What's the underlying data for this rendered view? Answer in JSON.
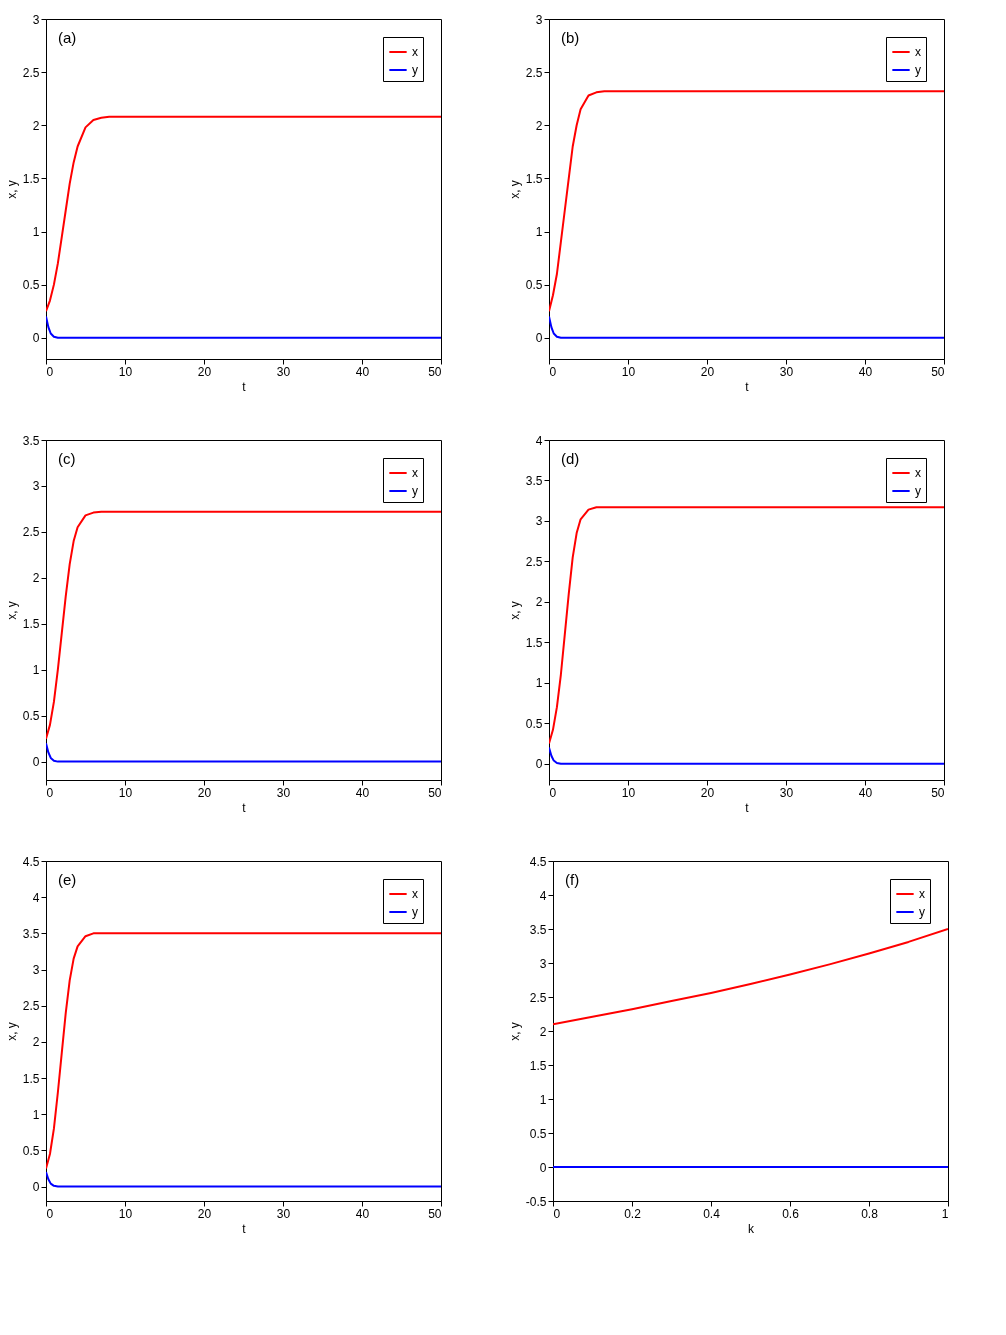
{
  "chart_data": [
    {
      "type": "line",
      "annotations": [
        "(a)"
      ],
      "xlabel": "t",
      "ylabel": "x, y",
      "xlim": [
        0,
        50
      ],
      "xticks": [
        0,
        10,
        20,
        30,
        40,
        50
      ],
      "ylim": [
        -0.2,
        3
      ],
      "yticks": [
        0,
        0.5,
        1,
        1.5,
        2,
        2.5,
        3
      ],
      "legend": "top right",
      "grid": false,
      "series": [
        {
          "name": "x",
          "color": "#ff0000",
          "x": [
            0,
            0.5,
            1,
            1.5,
            2,
            2.5,
            3,
            3.5,
            4,
            5,
            6,
            7,
            8,
            10,
            20,
            30,
            40,
            50
          ],
          "values": [
            0.25,
            0.35,
            0.5,
            0.7,
            0.95,
            1.2,
            1.45,
            1.65,
            1.8,
            1.98,
            2.05,
            2.07,
            2.08,
            2.08,
            2.08,
            2.08,
            2.08,
            2.08
          ]
        },
        {
          "name": "y",
          "color": "#0000ff",
          "x": [
            0,
            0.3,
            0.6,
            1,
            1.5,
            2,
            50
          ],
          "values": [
            0.2,
            0.1,
            0.04,
            0.01,
            0,
            0,
            0
          ]
        }
      ]
    },
    {
      "type": "line",
      "annotations": [
        "(b)"
      ],
      "xlabel": "t",
      "ylabel": "x, y",
      "xlim": [
        0,
        50
      ],
      "xticks": [
        0,
        10,
        20,
        30,
        40,
        50
      ],
      "ylim": [
        -0.2,
        3
      ],
      "yticks": [
        0,
        0.5,
        1,
        1.5,
        2,
        2.5,
        3
      ],
      "legend": "top right",
      "grid": false,
      "series": [
        {
          "name": "x",
          "color": "#ff0000",
          "x": [
            0,
            0.5,
            1,
            1.5,
            2,
            2.5,
            3,
            3.5,
            4,
            5,
            6,
            7,
            8,
            10,
            20,
            30,
            40,
            50
          ],
          "values": [
            0.25,
            0.4,
            0.6,
            0.9,
            1.2,
            1.5,
            1.8,
            2.0,
            2.15,
            2.28,
            2.31,
            2.32,
            2.32,
            2.32,
            2.32,
            2.32,
            2.32,
            2.32
          ]
        },
        {
          "name": "y",
          "color": "#0000ff",
          "x": [
            0,
            0.3,
            0.6,
            1,
            1.5,
            2,
            50
          ],
          "values": [
            0.2,
            0.1,
            0.04,
            0.01,
            0,
            0,
            0
          ]
        }
      ]
    },
    {
      "type": "line",
      "annotations": [
        "(c)"
      ],
      "xlabel": "t",
      "ylabel": "x, y",
      "xlim": [
        0,
        50
      ],
      "xticks": [
        0,
        10,
        20,
        30,
        40,
        50
      ],
      "ylim": [
        -0.2,
        3.5
      ],
      "yticks": [
        0,
        0.5,
        1,
        1.5,
        2,
        2.5,
        3,
        3.5
      ],
      "legend": "top right",
      "grid": false,
      "series": [
        {
          "name": "x",
          "color": "#ff0000",
          "x": [
            0,
            0.5,
            1,
            1.5,
            2,
            2.5,
            3,
            3.5,
            4,
            5,
            6,
            7,
            8,
            10,
            20,
            30,
            40,
            50
          ],
          "values": [
            0.25,
            0.4,
            0.65,
            1.0,
            1.4,
            1.8,
            2.15,
            2.4,
            2.55,
            2.68,
            2.71,
            2.72,
            2.72,
            2.72,
            2.72,
            2.72,
            2.72,
            2.72
          ]
        },
        {
          "name": "y",
          "color": "#0000ff",
          "x": [
            0,
            0.3,
            0.6,
            1,
            1.5,
            2,
            50
          ],
          "values": [
            0.2,
            0.1,
            0.04,
            0.01,
            0,
            0,
            0
          ]
        }
      ]
    },
    {
      "type": "line",
      "annotations": [
        "(d)"
      ],
      "xlabel": "t",
      "ylabel": "x, y",
      "xlim": [
        0,
        50
      ],
      "xticks": [
        0,
        10,
        20,
        30,
        40,
        50
      ],
      "ylim": [
        -0.2,
        4
      ],
      "yticks": [
        0,
        0.5,
        1,
        1.5,
        2,
        2.5,
        3,
        3.5,
        4
      ],
      "legend": "top right",
      "grid": false,
      "series": [
        {
          "name": "x",
          "color": "#ff0000",
          "x": [
            0,
            0.5,
            1,
            1.5,
            2,
            2.5,
            3,
            3.5,
            4,
            5,
            6,
            7,
            8,
            10,
            20,
            30,
            40,
            50
          ],
          "values": [
            0.25,
            0.42,
            0.7,
            1.1,
            1.6,
            2.1,
            2.55,
            2.85,
            3.02,
            3.14,
            3.17,
            3.17,
            3.17,
            3.17,
            3.17,
            3.17,
            3.17,
            3.17
          ]
        },
        {
          "name": "y",
          "color": "#0000ff",
          "x": [
            0,
            0.3,
            0.6,
            1,
            1.5,
            2,
            50
          ],
          "values": [
            0.2,
            0.1,
            0.04,
            0.01,
            0,
            0,
            0
          ]
        }
      ]
    },
    {
      "type": "line",
      "annotations": [
        "(e)"
      ],
      "xlabel": "t",
      "ylabel": "x, y",
      "xlim": [
        0,
        50
      ],
      "xticks": [
        0,
        10,
        20,
        30,
        40,
        50
      ],
      "ylim": [
        -0.2,
        4.5
      ],
      "yticks": [
        0,
        0.5,
        1,
        1.5,
        2,
        2.5,
        3,
        3.5,
        4,
        4.5
      ],
      "legend": "top right",
      "grid": false,
      "series": [
        {
          "name": "x",
          "color": "#ff0000",
          "x": [
            0,
            0.5,
            1,
            1.5,
            2,
            2.5,
            3,
            3.5,
            4,
            5,
            6,
            7,
            8,
            10,
            20,
            30,
            40,
            50
          ],
          "values": [
            0.25,
            0.45,
            0.8,
            1.3,
            1.85,
            2.4,
            2.85,
            3.15,
            3.32,
            3.46,
            3.5,
            3.5,
            3.5,
            3.5,
            3.5,
            3.5,
            3.5,
            3.5
          ]
        },
        {
          "name": "y",
          "color": "#0000ff",
          "x": [
            0,
            0.3,
            0.6,
            1,
            1.5,
            2,
            50
          ],
          "values": [
            0.2,
            0.1,
            0.04,
            0.01,
            0,
            0,
            0
          ]
        }
      ]
    },
    {
      "type": "line",
      "annotations": [
        "(f)"
      ],
      "xlabel": "k",
      "ylabel": "x, y",
      "xlim": [
        0,
        1
      ],
      "xticks": [
        0,
        0.2,
        0.4,
        0.6,
        0.8,
        1
      ],
      "ylim": [
        -0.5,
        4.5
      ],
      "yticks": [
        -0.5,
        0,
        0.5,
        1,
        1.5,
        2,
        2.5,
        3,
        3.5,
        4,
        4.5
      ],
      "legend": "top right",
      "grid": false,
      "series": [
        {
          "name": "x",
          "color": "#ff0000",
          "x": [
            0,
            0.1,
            0.2,
            0.3,
            0.4,
            0.5,
            0.6,
            0.7,
            0.8,
            0.9,
            1
          ],
          "values": [
            2.1,
            2.21,
            2.32,
            2.44,
            2.56,
            2.69,
            2.83,
            2.98,
            3.14,
            3.31,
            3.5
          ]
        },
        {
          "name": "y",
          "color": "#0000ff",
          "x": [
            0,
            1
          ],
          "values": [
            0,
            0
          ]
        }
      ]
    }
  ]
}
